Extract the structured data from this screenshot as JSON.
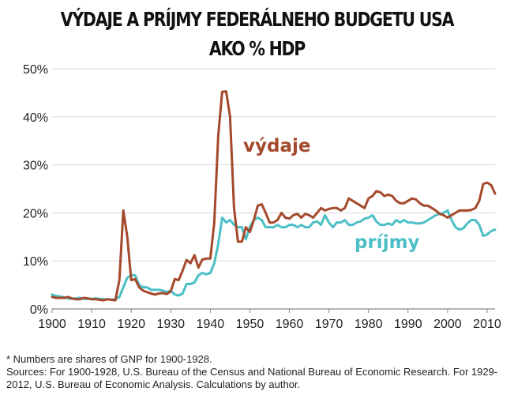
{
  "title_line1": "VÝDAJE  A PRÍJMY FEDERÁLNEHO BUDGETU USA",
  "title_line2": "AKO % HDP",
  "footnote": "* Numbers are shares of GNP for 1900-1928.",
  "sources": "Sources: For 1900-1928, U.S. Bureau of the Census and National Bureau of Economic Research.  For 1929-2012,  U.S. Bureau of Economic Analysis.  Calculations by author.",
  "colors": {
    "expenditures": "#a4492b",
    "revenues": "#4cbfc6",
    "axis": "#888888"
  },
  "chart_data": {
    "type": "line",
    "xlim": [
      1900,
      2012
    ],
    "ylim": [
      0,
      50
    ],
    "xticks": [
      1900,
      1910,
      1920,
      1930,
      1940,
      1950,
      1960,
      1970,
      1980,
      1990,
      2000,
      2010
    ],
    "yticks": [
      {
        "value": 0,
        "label": "0%"
      },
      {
        "value": 10,
        "label": "10%"
      },
      {
        "value": 20,
        "label": "20%"
      },
      {
        "value": 30,
        "label": "30%"
      },
      {
        "value": 40,
        "label": "40%"
      },
      {
        "value": 50,
        "label": "50%"
      }
    ],
    "grid": "horizontal",
    "series": [
      {
        "name": "výdaje",
        "color": "#a4492b",
        "x": [
          1900,
          1901,
          1902,
          1903,
          1904,
          1905,
          1906,
          1907,
          1908,
          1909,
          1910,
          1911,
          1912,
          1913,
          1914,
          1915,
          1916,
          1917,
          1918,
          1919,
          1920,
          1921,
          1922,
          1923,
          1924,
          1925,
          1926,
          1927,
          1928,
          1929,
          1930,
          1931,
          1932,
          1933,
          1934,
          1935,
          1936,
          1937,
          1938,
          1939,
          1940,
          1941,
          1942,
          1943,
          1944,
          1945,
          1946,
          1947,
          1948,
          1949,
          1950,
          1951,
          1952,
          1953,
          1954,
          1955,
          1956,
          1957,
          1958,
          1959,
          1960,
          1961,
          1962,
          1963,
          1964,
          1965,
          1966,
          1967,
          1968,
          1969,
          1970,
          1971,
          1972,
          1973,
          1974,
          1975,
          1976,
          1977,
          1978,
          1979,
          1980,
          1981,
          1982,
          1983,
          1984,
          1985,
          1986,
          1987,
          1988,
          1989,
          1990,
          1991,
          1992,
          1993,
          1994,
          1995,
          1996,
          1997,
          1998,
          1999,
          2000,
          2001,
          2002,
          2003,
          2004,
          2005,
          2006,
          2007,
          2008,
          2009,
          2010,
          2011,
          2012
        ],
        "y": [
          2.5,
          2.3,
          2.3,
          2.3,
          2.5,
          2.2,
          2.0,
          2.0,
          2.3,
          2.2,
          2.0,
          2.0,
          1.9,
          1.8,
          2.0,
          1.9,
          1.8,
          6.0,
          20.5,
          15.0,
          6.0,
          6.2,
          4.5,
          3.8,
          3.5,
          3.2,
          3.0,
          3.2,
          3.3,
          3.1,
          3.7,
          6.2,
          6.0,
          8.0,
          10.2,
          9.5,
          11.2,
          8.6,
          10.3,
          10.5,
          10.5,
          18.0,
          36.0,
          45.2,
          45.3,
          40.0,
          21.0,
          14.0,
          14.0,
          17.0,
          16.0,
          18.5,
          21.5,
          21.8,
          20.0,
          18.0,
          18.0,
          18.5,
          20.0,
          19.0,
          18.8,
          19.5,
          19.8,
          19.0,
          19.8,
          19.5,
          19.0,
          20.0,
          21.0,
          20.5,
          20.8,
          21.0,
          21.0,
          20.5,
          21.0,
          23.0,
          22.5,
          22.0,
          21.5,
          21.0,
          23.0,
          23.5,
          24.5,
          24.3,
          23.5,
          23.8,
          23.5,
          22.5,
          22.0,
          22.0,
          22.5,
          23.0,
          22.8,
          22.0,
          21.5,
          21.5,
          21.0,
          20.5,
          19.8,
          19.5,
          19.0,
          19.5,
          20.0,
          20.5,
          20.5,
          20.5,
          20.6,
          21.0,
          22.5,
          26.0,
          26.3,
          25.8,
          24.0
        ]
      },
      {
        "name": "príjmy",
        "color": "#4cbfc6",
        "x": [
          1900,
          1901,
          1902,
          1903,
          1904,
          1905,
          1906,
          1907,
          1908,
          1909,
          1910,
          1911,
          1912,
          1913,
          1914,
          1915,
          1916,
          1917,
          1918,
          1919,
          1920,
          1921,
          1922,
          1923,
          1924,
          1925,
          1926,
          1927,
          1928,
          1929,
          1930,
          1931,
          1932,
          1933,
          1934,
          1935,
          1936,
          1937,
          1938,
          1939,
          1940,
          1941,
          1942,
          1943,
          1944,
          1945,
          1946,
          1947,
          1948,
          1949,
          1950,
          1951,
          1952,
          1953,
          1954,
          1955,
          1956,
          1957,
          1958,
          1959,
          1960,
          1961,
          1962,
          1963,
          1964,
          1965,
          1966,
          1967,
          1968,
          1969,
          1970,
          1971,
          1972,
          1973,
          1974,
          1975,
          1976,
          1977,
          1978,
          1979,
          1980,
          1981,
          1982,
          1983,
          1984,
          1985,
          1986,
          1987,
          1988,
          1989,
          1990,
          1991,
          1992,
          1993,
          1994,
          1995,
          1996,
          1997,
          1998,
          1999,
          2000,
          2001,
          2002,
          2003,
          2004,
          2005,
          2006,
          2007,
          2008,
          2009,
          2010,
          2011,
          2012
        ],
        "y": [
          3.0,
          2.7,
          2.6,
          2.4,
          2.2,
          2.1,
          2.2,
          2.3,
          2.1,
          2.1,
          2.1,
          2.2,
          2.1,
          2.0,
          2.0,
          1.9,
          2.0,
          2.5,
          4.5,
          6.5,
          7.0,
          7.0,
          5.0,
          4.5,
          4.5,
          4.0,
          4.0,
          4.0,
          3.8,
          3.5,
          3.8,
          3.0,
          2.8,
          3.2,
          5.2,
          5.2,
          5.5,
          7.0,
          7.5,
          7.2,
          7.5,
          9.5,
          13.5,
          19.0,
          18.0,
          18.5,
          17.5,
          17.0,
          17.0,
          14.5,
          17.0,
          18.5,
          19.0,
          18.5,
          17.0,
          17.0,
          17.0,
          17.5,
          17.0,
          17.0,
          17.5,
          17.5,
          17.0,
          17.5,
          17.0,
          17.0,
          18.0,
          18.2,
          17.5,
          19.5,
          18.0,
          17.0,
          18.0,
          18.0,
          18.5,
          17.5,
          17.5,
          18.0,
          18.2,
          18.8,
          19.0,
          19.5,
          18.2,
          17.5,
          17.5,
          17.8,
          17.5,
          18.5,
          18.0,
          18.5,
          18.0,
          18.0,
          17.8,
          17.8,
          18.0,
          18.5,
          19.0,
          19.5,
          19.8,
          20.0,
          20.5,
          18.5,
          17.0,
          16.5,
          16.8,
          17.8,
          18.5,
          18.5,
          17.5,
          15.2,
          15.5,
          16.2,
          16.5
        ]
      }
    ],
    "annotations": [
      {
        "text": "výdaje",
        "series": "výdaje"
      },
      {
        "text": "príjmy",
        "series": "príjmy"
      }
    ]
  }
}
